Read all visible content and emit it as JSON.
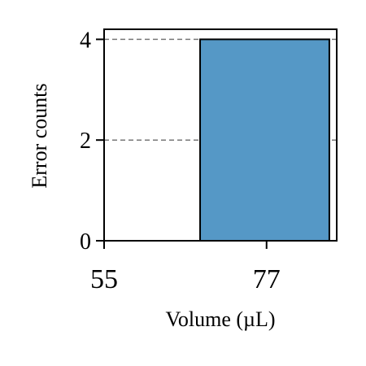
{
  "chart_data": {
    "type": "bar",
    "xlabel": "Volume (µL)",
    "ylabel": "Error counts",
    "x_ticks": [
      55,
      77
    ],
    "y_ticks": [
      0,
      2,
      4
    ],
    "xlim": [
      55,
      86.5
    ],
    "ylim": [
      0,
      4.2
    ],
    "grid": {
      "y": true,
      "x": false,
      "style": "dashed"
    },
    "bars": [
      {
        "x_start": 68,
        "x_end": 85.5,
        "value": 4
      }
    ],
    "colors": {
      "bar_fill": "#5598c6",
      "bar_edge": "#000000",
      "grid": "#777777",
      "axis": "#000000"
    }
  }
}
